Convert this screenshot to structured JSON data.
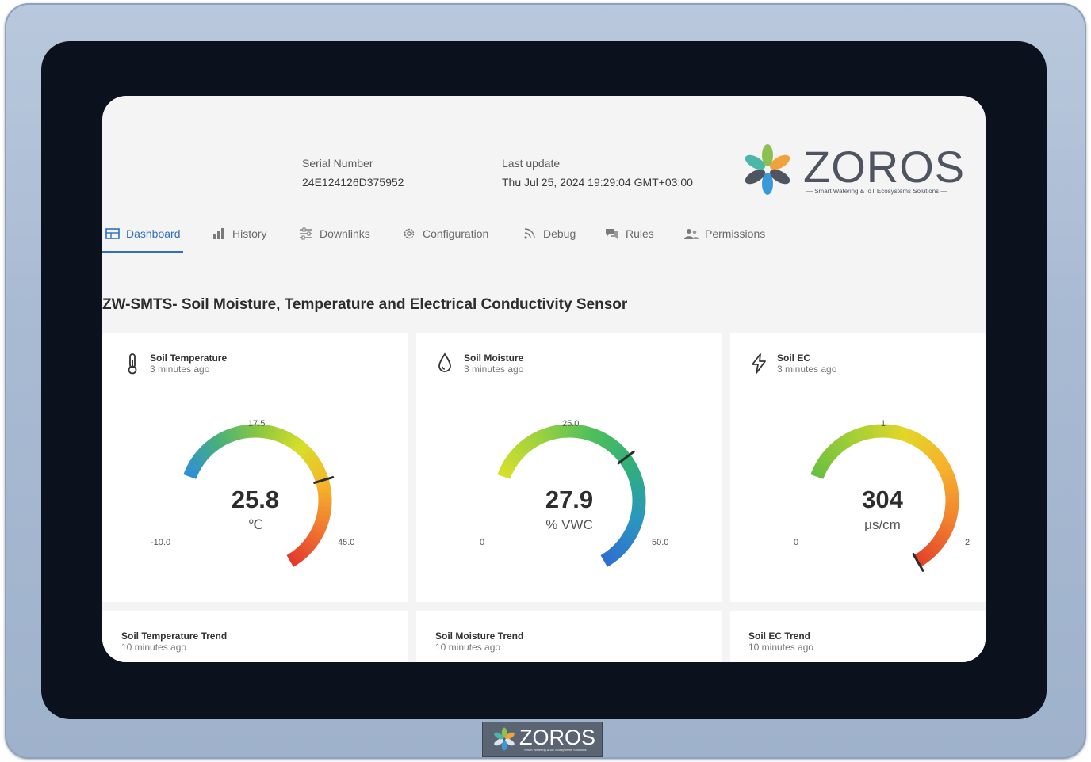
{
  "device": {
    "serial_label": "Serial Number",
    "serial_value": "24E124126D375952",
    "update_label": "Last update",
    "update_value": "Thu Jul 25, 2024 19:29:04 GMT+03:00"
  },
  "brand": {
    "name": "ZOROS",
    "tagline": "— Smart Watering & IoT Ecosystems Solutions —",
    "badge_name": "ZOROS",
    "badge_tagline": "Smart Watering & IoT Ecosystems Solutions",
    "colors": {
      "orange": "#f0a23c",
      "green": "#8cc152",
      "blue": "#3a9ad9",
      "dark": "#4f5560",
      "teal": "#4bb7a6"
    }
  },
  "tabs": [
    {
      "label": "Dashboard",
      "icon": "dashboard-icon",
      "active": true
    },
    {
      "label": "History",
      "icon": "bar-chart-icon",
      "active": false
    },
    {
      "label": "Downlinks",
      "icon": "sliders-icon",
      "active": false
    },
    {
      "label": "Configuration",
      "icon": "gear-icon",
      "active": false
    },
    {
      "label": "Debug",
      "icon": "rss-icon",
      "active": false
    },
    {
      "label": "Rules",
      "icon": "chat-icon",
      "active": false
    },
    {
      "label": "Permissions",
      "icon": "users-icon",
      "active": false
    }
  ],
  "page_title": "ZW-SMTS- Soil Moisture, Temperature and Electrical Conductivity Sensor",
  "gauges": [
    {
      "title": "Soil Temperature",
      "subtitle": "3 minutes ago",
      "icon": "thermometer-icon",
      "value": "25.8",
      "unit": "℃",
      "min": "-10.0",
      "mid": "17.5",
      "max": "45.0",
      "reading": 25.8,
      "range": [
        -10,
        45
      ],
      "palette": "temp"
    },
    {
      "title": "Soil Moisture",
      "subtitle": "3 minutes ago",
      "icon": "droplet-icon",
      "value": "27.9",
      "unit": "% VWC",
      "min": "0",
      "mid": "25.0",
      "max": "50.0",
      "reading": 27.9,
      "range": [
        0,
        50
      ],
      "palette": "moist"
    },
    {
      "title": "Soil EC",
      "subtitle": "3 minutes ago",
      "icon": "lightning-icon",
      "value": "304",
      "unit": "μs/cm",
      "min": "0",
      "mid": "1",
      "max": "2",
      "reading": 2,
      "range": [
        0,
        2
      ],
      "palette": "ec"
    }
  ],
  "trends": [
    {
      "title": "Soil Temperature Trend",
      "subtitle": "10 minutes ago"
    },
    {
      "title": "Soil Moisture Trend",
      "subtitle": "10 minutes ago"
    },
    {
      "title": "Soil EC Trend",
      "subtitle": "10 minutes ago"
    }
  ]
}
